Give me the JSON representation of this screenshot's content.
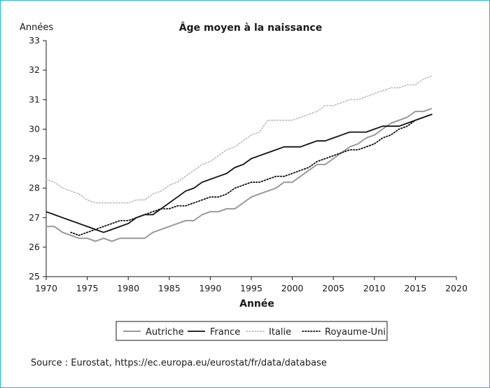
{
  "chart_data": {
    "type": "line",
    "title": "Âge moyen à la naissance",
    "xlabel": "Année",
    "ylabel": "Années",
    "xlim": [
      1970,
      2020
    ],
    "ylim": [
      25,
      33
    ],
    "xticks": [
      1970,
      1975,
      1980,
      1985,
      1990,
      1995,
      2000,
      2005,
      2010,
      2015,
      2020
    ],
    "yticks": [
      25,
      26,
      27,
      28,
      29,
      30,
      31,
      32,
      33
    ],
    "grid": false,
    "legend_position": "bottom",
    "series": [
      {
        "name": "Autriche",
        "color": "#9a9a9a",
        "style": "solid",
        "x": [
          1970,
          1971,
          1972,
          1973,
          1974,
          1975,
          1976,
          1977,
          1978,
          1979,
          1980,
          1981,
          1982,
          1983,
          1984,
          1985,
          1986,
          1987,
          1988,
          1989,
          1990,
          1991,
          1992,
          1993,
          1994,
          1995,
          1996,
          1997,
          1998,
          1999,
          2000,
          2001,
          2002,
          2003,
          2004,
          2005,
          2006,
          2007,
          2008,
          2009,
          2010,
          2011,
          2012,
          2013,
          2014,
          2015,
          2016,
          2017
        ],
        "y": [
          26.7,
          26.7,
          26.5,
          26.4,
          26.3,
          26.3,
          26.2,
          26.3,
          26.2,
          26.3,
          26.3,
          26.3,
          26.3,
          26.5,
          26.6,
          26.7,
          26.8,
          26.9,
          26.9,
          27.1,
          27.2,
          27.2,
          27.3,
          27.3,
          27.5,
          27.7,
          27.8,
          27.9,
          28.0,
          28.2,
          28.2,
          28.4,
          28.6,
          28.8,
          28.8,
          29.0,
          29.2,
          29.4,
          29.5,
          29.7,
          29.8,
          30.0,
          30.2,
          30.3,
          30.4,
          30.6,
          30.6,
          30.7
        ]
      },
      {
        "name": "France",
        "color": "#111111",
        "style": "solid",
        "x": [
          1970,
          1971,
          1972,
          1973,
          1974,
          1975,
          1976,
          1977,
          1978,
          1979,
          1980,
          1981,
          1982,
          1983,
          1984,
          1985,
          1986,
          1987,
          1988,
          1989,
          1990,
          1991,
          1992,
          1993,
          1994,
          1995,
          1996,
          1997,
          1998,
          1999,
          2000,
          2001,
          2002,
          2003,
          2004,
          2005,
          2006,
          2007,
          2008,
          2009,
          2010,
          2011,
          2012,
          2013,
          2014,
          2015,
          2016,
          2017
        ],
        "y": [
          27.2,
          27.1,
          27.0,
          26.9,
          26.8,
          26.7,
          26.6,
          26.5,
          26.6,
          26.7,
          26.8,
          27.0,
          27.1,
          27.1,
          27.3,
          27.5,
          27.7,
          27.9,
          28.0,
          28.2,
          28.3,
          28.4,
          28.5,
          28.7,
          28.8,
          29.0,
          29.1,
          29.2,
          29.3,
          29.4,
          29.4,
          29.4,
          29.5,
          29.6,
          29.6,
          29.7,
          29.8,
          29.9,
          29.9,
          29.9,
          30.0,
          30.1,
          30.1,
          30.1,
          30.2,
          30.3,
          30.4,
          30.5
        ]
      },
      {
        "name": "Italie",
        "color": "#b0b0b0",
        "style": "dotted",
        "x": [
          1970,
          1971,
          1972,
          1973,
          1974,
          1975,
          1976,
          1977,
          1978,
          1979,
          1980,
          1981,
          1982,
          1983,
          1984,
          1985,
          1986,
          1987,
          1988,
          1989,
          1990,
          1991,
          1992,
          1993,
          1994,
          1995,
          1996,
          1997,
          1998,
          1999,
          2000,
          2001,
          2002,
          2003,
          2004,
          2005,
          2006,
          2007,
          2008,
          2009,
          2010,
          2011,
          2012,
          2013,
          2014,
          2015,
          2016,
          2017
        ],
        "y": [
          28.3,
          28.2,
          28.0,
          27.9,
          27.8,
          27.6,
          27.5,
          27.5,
          27.5,
          27.5,
          27.5,
          27.6,
          27.6,
          27.8,
          27.9,
          28.1,
          28.2,
          28.4,
          28.6,
          28.8,
          28.9,
          29.1,
          29.3,
          29.4,
          29.6,
          29.8,
          29.9,
          30.3,
          30.3,
          30.3,
          30.3,
          30.4,
          30.5,
          30.6,
          30.8,
          30.8,
          30.9,
          31.0,
          31.0,
          31.1,
          31.2,
          31.3,
          31.4,
          31.4,
          31.5,
          31.5,
          31.7,
          31.8
        ]
      },
      {
        "name": "Royaume-Uni",
        "color": "#111111",
        "style": "dotted",
        "x": [
          1973,
          1974,
          1975,
          1976,
          1977,
          1978,
          1979,
          1980,
          1981,
          1982,
          1983,
          1984,
          1985,
          1986,
          1987,
          1988,
          1989,
          1990,
          1991,
          1992,
          1993,
          1994,
          1995,
          1996,
          1997,
          1998,
          1999,
          2000,
          2001,
          2002,
          2003,
          2004,
          2005,
          2006,
          2007,
          2008,
          2009,
          2010,
          2011,
          2012,
          2013,
          2014,
          2015,
          2016,
          2017
        ],
        "y": [
          26.5,
          26.4,
          26.5,
          26.6,
          26.7,
          26.8,
          26.9,
          26.9,
          27.0,
          27.1,
          27.2,
          27.3,
          27.3,
          27.4,
          27.4,
          27.5,
          27.6,
          27.7,
          27.7,
          27.8,
          28.0,
          28.1,
          28.2,
          28.2,
          28.3,
          28.4,
          28.4,
          28.5,
          28.6,
          28.7,
          28.9,
          29.0,
          29.1,
          29.2,
          29.3,
          29.3,
          29.4,
          29.5,
          29.7,
          29.8,
          30.0,
          30.1,
          30.3,
          30.4,
          30.5
        ]
      }
    ]
  },
  "source_note": "Source : Eurostat, https://ec.europa.eu/eurostat/fr/data/database"
}
